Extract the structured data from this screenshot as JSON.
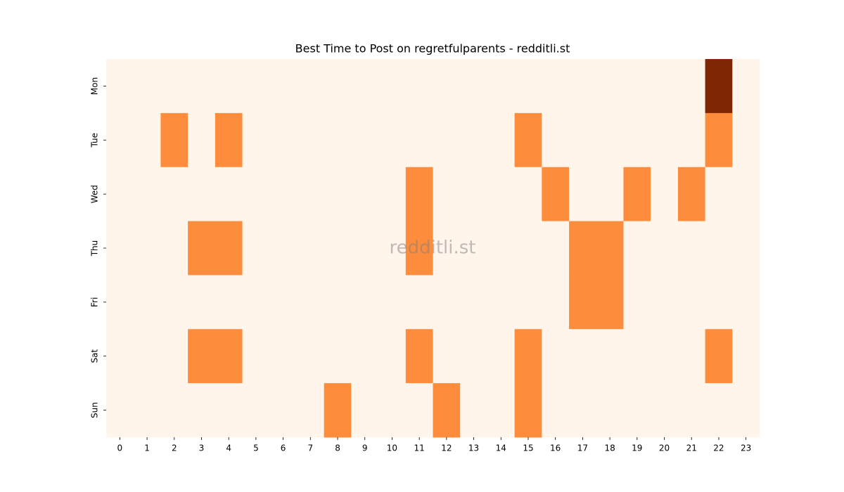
{
  "chart_data": {
    "type": "heatmap",
    "title": "Best Time to Post on regretfulparents - redditli.st",
    "watermark": "redditli.st",
    "x_categories": [
      "0",
      "1",
      "2",
      "3",
      "4",
      "5",
      "6",
      "7",
      "8",
      "9",
      "10",
      "11",
      "12",
      "13",
      "14",
      "15",
      "16",
      "17",
      "18",
      "19",
      "20",
      "21",
      "22",
      "23"
    ],
    "y_categories": [
      "Mon",
      "Tue",
      "Wed",
      "Thu",
      "Fri",
      "Sat",
      "Sun"
    ],
    "values": [
      [
        0,
        0,
        0,
        0,
        0,
        0,
        0,
        0,
        0,
        0,
        0,
        0,
        0,
        0,
        0,
        0,
        0,
        0,
        0,
        0,
        0,
        0,
        2,
        0
      ],
      [
        0,
        0,
        1,
        0,
        1,
        0,
        0,
        0,
        0,
        0,
        0,
        0,
        0,
        0,
        0,
        1,
        0,
        0,
        0,
        0,
        0,
        0,
        1,
        0
      ],
      [
        0,
        0,
        0,
        0,
        0,
        0,
        0,
        0,
        0,
        0,
        0,
        1,
        0,
        0,
        0,
        0,
        1,
        0,
        0,
        1,
        0,
        1,
        0,
        0
      ],
      [
        0,
        0,
        0,
        1,
        1,
        0,
        0,
        0,
        0,
        0,
        0,
        1,
        0,
        0,
        0,
        0,
        0,
        1,
        1,
        0,
        0,
        0,
        0,
        0
      ],
      [
        0,
        0,
        0,
        0,
        0,
        0,
        0,
        0,
        0,
        0,
        0,
        0,
        0,
        0,
        0,
        0,
        0,
        1,
        1,
        0,
        0,
        0,
        0,
        0
      ],
      [
        0,
        0,
        0,
        1,
        1,
        0,
        0,
        0,
        0,
        0,
        0,
        1,
        0,
        0,
        0,
        1,
        0,
        0,
        0,
        0,
        0,
        0,
        1,
        0
      ],
      [
        0,
        0,
        0,
        0,
        0,
        0,
        0,
        0,
        1,
        0,
        0,
        0,
        1,
        0,
        0,
        1,
        0,
        0,
        0,
        0,
        0,
        0,
        0,
        0
      ]
    ],
    "zlim": [
      0,
      2
    ],
    "colors": [
      "#fff5eb",
      "#fd8d3c",
      "#7f2704"
    ]
  }
}
